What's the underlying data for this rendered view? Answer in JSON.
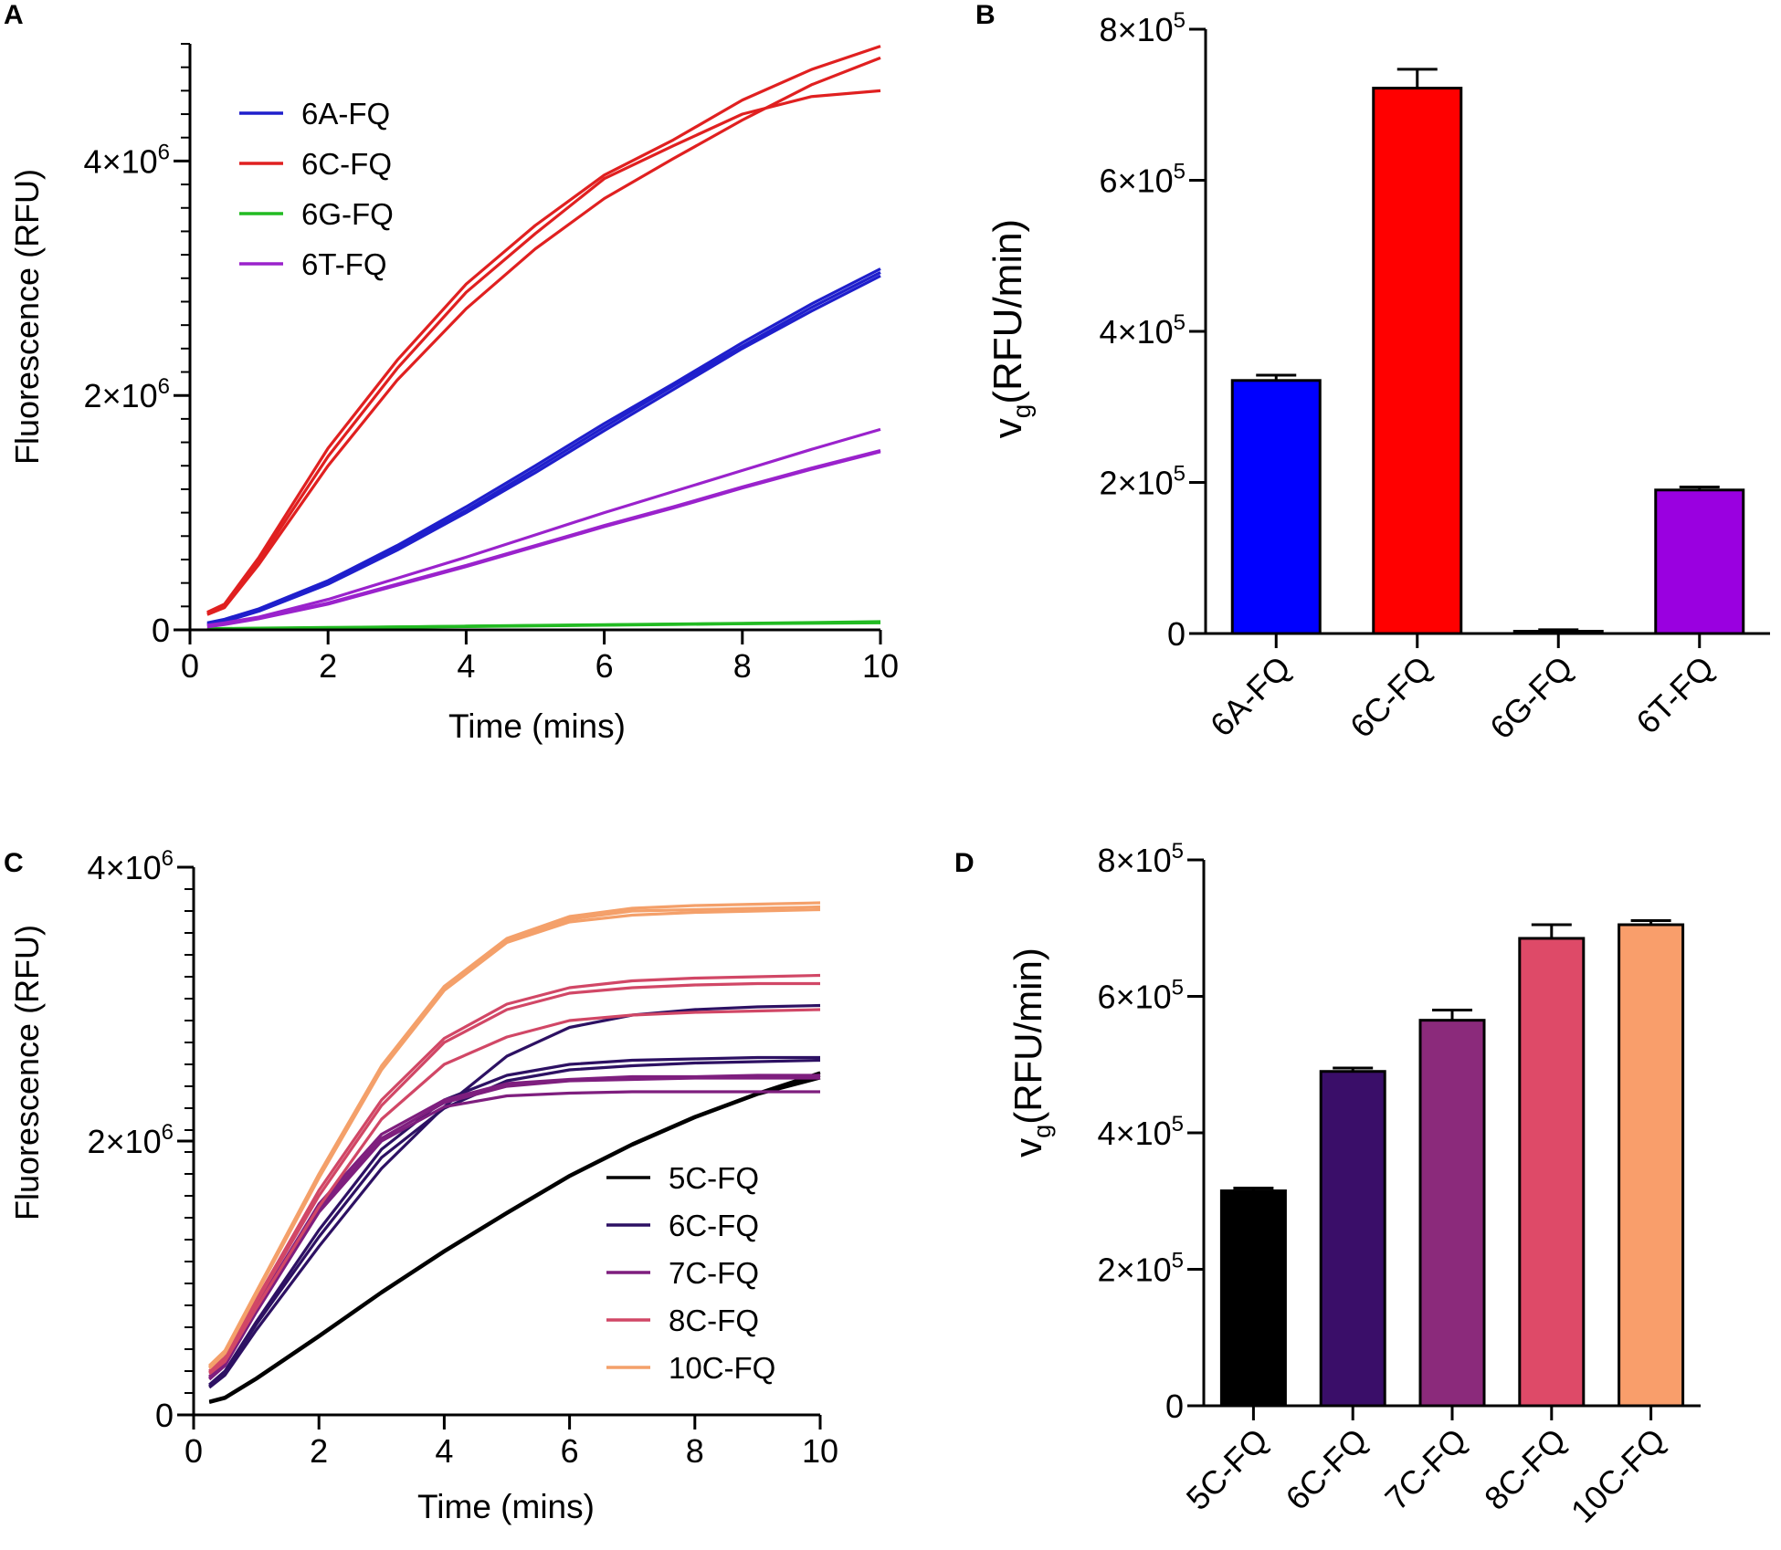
{
  "chart_data": [
    {
      "panel": "A",
      "type": "line",
      "xlabel": "Time (mins)",
      "ylabel": "Fluorescence (RFU)",
      "xlim": [
        0,
        10
      ],
      "ylim": [
        0,
        5000000
      ],
      "xticks": [
        0,
        2,
        4,
        6,
        8,
        10
      ],
      "yticks": [
        {
          "v": 0,
          "label": "0"
        },
        {
          "v": 2000000,
          "label": "2×10",
          "exp": "6"
        },
        {
          "v": 4000000,
          "label": "4×10",
          "exp": "6"
        }
      ],
      "legend": {
        "position": "top-left"
      },
      "x": [
        0.25,
        0.5,
        1,
        2,
        3,
        4,
        5,
        6,
        7,
        8,
        9,
        10
      ],
      "series": [
        {
          "name": "6A-FQ",
          "color": "#1f1fcc",
          "lines": [
            [
              60000,
              90000,
              180000,
              420000,
              720000,
              1050000,
              1400000,
              1760000,
              2100000,
              2450000,
              2780000,
              3080000
            ],
            [
              50000,
              80000,
              170000,
              400000,
              700000,
              1020000,
              1370000,
              1730000,
              2080000,
              2420000,
              2750000,
              3050000
            ],
            [
              40000,
              70000,
              160000,
              390000,
              680000,
              1000000,
              1340000,
              1700000,
              2050000,
              2400000,
              2720000,
              3020000
            ]
          ]
        },
        {
          "name": "6C-FQ",
          "color": "#e02020",
          "lines": [
            [
              150000,
              220000,
              620000,
              1550000,
              2300000,
              2950000,
              3450000,
              3880000,
              4180000,
              4520000,
              4780000,
              4980000
            ],
            [
              140000,
              200000,
              590000,
              1480000,
              2230000,
              2880000,
              3380000,
              3850000,
              4130000,
              4400000,
              4550000,
              4600000
            ],
            [
              130000,
              190000,
              560000,
              1400000,
              2130000,
              2740000,
              3250000,
              3680000,
              4020000,
              4350000,
              4650000,
              4880000
            ]
          ]
        },
        {
          "name": "6G-FQ",
          "color": "#22bb22",
          "lines": [
            [
              10000,
              12000,
              15000,
              20000,
              26000,
              32000,
              38000,
              44000,
              50000,
              56000,
              62000,
              70000
            ],
            [
              8000,
              10000,
              13000,
              18000,
              24000,
              30000,
              36000,
              42000,
              48000,
              54000,
              60000,
              66000
            ],
            [
              6000,
              8000,
              11000,
              16000,
              22000,
              28000,
              34000,
              40000,
              46000,
              52000,
              56000,
              60000
            ]
          ]
        },
        {
          "name": "6T-FQ",
          "color": "#9a22cc",
          "lines": [
            [
              40000,
              60000,
              110000,
              260000,
              440000,
              620000,
              810000,
              1000000,
              1180000,
              1360000,
              1540000,
              1710000
            ],
            [
              30000,
              50000,
              100000,
              230000,
              390000,
              550000,
              720000,
              890000,
              1050000,
              1220000,
              1380000,
              1530000
            ],
            [
              25000,
              45000,
              95000,
              220000,
              380000,
              540000,
              710000,
              880000,
              1040000,
              1210000,
              1370000,
              1520000
            ]
          ]
        }
      ]
    },
    {
      "panel": "B",
      "type": "bar",
      "ylabel_main": "v",
      "ylabel_sub": "g",
      "ylabel_rest": "(RFU/min)",
      "ylim": [
        0,
        800000
      ],
      "yticks": [
        {
          "v": 0,
          "label": "0"
        },
        {
          "v": 200000,
          "label": "2×10",
          "exp": "5"
        },
        {
          "v": 400000,
          "label": "4×10",
          "exp": "5"
        },
        {
          "v": 600000,
          "label": "6×10",
          "exp": "5"
        },
        {
          "v": 800000,
          "label": "8×10",
          "exp": "5"
        }
      ],
      "categories": [
        "6A-FQ",
        "6C-FQ",
        "6G-FQ",
        "6T-FQ"
      ],
      "values": [
        335000,
        722000,
        3000,
        190000
      ],
      "errors": [
        7000,
        25000,
        2000,
        4000
      ],
      "colors": [
        "#0000ff",
        "#ff0000",
        "#22bb22",
        "#9a00e0"
      ]
    },
    {
      "panel": "C",
      "type": "line",
      "xlabel": "Time (mins)",
      "ylabel": "Fluorescence (RFU)",
      "xlim": [
        0,
        10
      ],
      "ylim": [
        0,
        4000000
      ],
      "xticks": [
        0,
        2,
        4,
        6,
        8,
        10
      ],
      "yticks": [
        {
          "v": 0,
          "label": "0"
        },
        {
          "v": 2000000,
          "label": "2×10",
          "exp": "6"
        },
        {
          "v": 4000000,
          "label": "4×10",
          "exp": "6"
        }
      ],
      "legend": {
        "position": "bottom-right"
      },
      "x": [
        0.25,
        0.5,
        1,
        2,
        3,
        4,
        5,
        6,
        7,
        8,
        9,
        10
      ],
      "series": [
        {
          "name": "5C-FQ",
          "color": "#000000",
          "lines": [
            [
              100000,
              130000,
              270000,
              580000,
              900000,
              1200000,
              1480000,
              1750000,
              1980000,
              2180000,
              2350000,
              2500000
            ],
            [
              95000,
              125000,
              265000,
              575000,
              895000,
              1195000,
              1475000,
              1745000,
              1975000,
              2175000,
              2345000,
              2480000
            ],
            [
              90000,
              120000,
              260000,
              570000,
              890000,
              1190000,
              1470000,
              1740000,
              1970000,
              2170000,
              2340000,
              2460000
            ]
          ]
        },
        {
          "name": "6C-FQ",
          "color": "#2d1163",
          "lines": [
            [
              200000,
              290000,
              620000,
              1230000,
              1800000,
              2250000,
              2620000,
              2830000,
              2920000,
              2960000,
              2980000,
              2990000
            ],
            [
              220000,
              320000,
              680000,
              1350000,
              1940000,
              2300000,
              2480000,
              2560000,
              2590000,
              2600000,
              2610000,
              2610000
            ],
            [
              210000,
              310000,
              660000,
              1300000,
              1880000,
              2240000,
              2440000,
              2520000,
              2550000,
              2570000,
              2580000,
              2590000
            ]
          ]
        },
        {
          "name": "7C-FQ",
          "color": "#7e1e7e",
          "lines": [
            [
              260000,
              360000,
              750000,
              1480000,
              2000000,
              2250000,
              2330000,
              2350000,
              2360000,
              2360000,
              2360000,
              2360000
            ],
            [
              280000,
              380000,
              790000,
              1540000,
              2050000,
              2300000,
              2420000,
              2450000,
              2470000,
              2470000,
              2480000,
              2480000
            ],
            [
              270000,
              370000,
              770000,
              1510000,
              2020000,
              2280000,
              2400000,
              2440000,
              2450000,
              2460000,
              2460000,
              2460000
            ]
          ]
        },
        {
          "name": "8C-FQ",
          "color": "#d14766",
          "lines": [
            [
              320000,
              420000,
              840000,
              1640000,
              2300000,
              2750000,
              3000000,
              3120000,
              3170000,
              3190000,
              3200000,
              3210000
            ],
            [
              310000,
              410000,
              820000,
              1600000,
              2260000,
              2720000,
              2960000,
              3080000,
              3120000,
              3140000,
              3150000,
              3150000
            ],
            [
              300000,
              390000,
              780000,
              1520000,
              2160000,
              2560000,
              2760000,
              2880000,
              2920000,
              2940000,
              2950000,
              2960000
            ]
          ]
        },
        {
          "name": "10C-FQ",
          "color": "#f4a06a",
          "lines": [
            [
              360000,
              470000,
              900000,
              1760000,
              2550000,
              3130000,
              3480000,
              3640000,
              3700000,
              3720000,
              3730000,
              3740000
            ],
            [
              350000,
              460000,
              890000,
              1740000,
              2530000,
              3110000,
              3460000,
              3620000,
              3680000,
              3690000,
              3700000,
              3710000
            ],
            [
              340000,
              450000,
              880000,
              1730000,
              2520000,
              3100000,
              3450000,
              3600000,
              3650000,
              3670000,
              3680000,
              3690000
            ]
          ]
        }
      ]
    },
    {
      "panel": "D",
      "type": "bar",
      "ylabel_main": "v",
      "ylabel_sub": "g",
      "ylabel_rest": "(RFU/min)",
      "ylim": [
        0,
        800000
      ],
      "yticks": [
        {
          "v": 0,
          "label": "0"
        },
        {
          "v": 200000,
          "label": "2×10",
          "exp": "5"
        },
        {
          "v": 400000,
          "label": "4×10",
          "exp": "5"
        },
        {
          "v": 600000,
          "label": "6×10",
          "exp": "5"
        },
        {
          "v": 800000,
          "label": "8×10",
          "exp": "5"
        }
      ],
      "categories": [
        "5C-FQ",
        "6C-FQ",
        "7C-FQ",
        "8C-FQ",
        "10C-FQ"
      ],
      "values": [
        315000,
        490000,
        565000,
        685000,
        705000
      ],
      "errors": [
        4000,
        5000,
        15000,
        20000,
        6000
      ],
      "colors": [
        "#000000",
        "#3a0e69",
        "#8b2a7b",
        "#de4a68",
        "#f99e6b"
      ]
    }
  ]
}
